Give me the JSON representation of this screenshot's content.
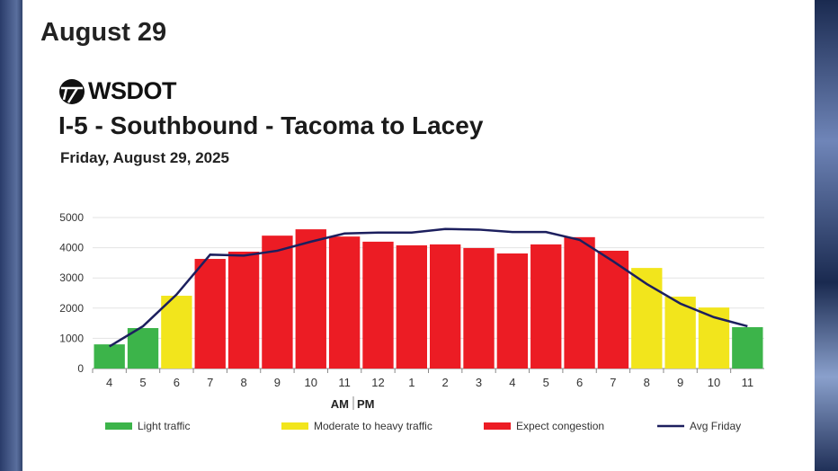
{
  "header": {
    "date": "August 29"
  },
  "logo": {
    "text": "WSDOT"
  },
  "chart_data": {
    "type": "bar",
    "title": "I-5 - Southbound - Tacoma to Lacey",
    "subtitle": "Friday, August 29, 2025",
    "xlabel_am": "AM",
    "xlabel_pm": "PM",
    "categories": [
      "4",
      "5",
      "6",
      "7",
      "8",
      "9",
      "10",
      "11",
      "12",
      "1",
      "2",
      "3",
      "4",
      "5",
      "6",
      "7",
      "8",
      "9",
      "10",
      "11"
    ],
    "values": [
      800,
      1340,
      2410,
      3630,
      3870,
      4400,
      4610,
      4370,
      4200,
      4080,
      4110,
      3990,
      3810,
      4110,
      4350,
      3900,
      3330,
      2380,
      2020,
      1370
    ],
    "levels": [
      "light",
      "light",
      "moderate",
      "congestion",
      "congestion",
      "congestion",
      "congestion",
      "congestion",
      "congestion",
      "congestion",
      "congestion",
      "congestion",
      "congestion",
      "congestion",
      "congestion",
      "congestion",
      "moderate",
      "moderate",
      "moderate",
      "light"
    ],
    "avg_friday": [
      730,
      1400,
      2450,
      3770,
      3740,
      3900,
      4200,
      4470,
      4500,
      4500,
      4620,
      4600,
      4520,
      4520,
      4260,
      3550,
      2800,
      2150,
      1700,
      1400
    ],
    "ylim": [
      0,
      5000
    ],
    "yticks": [
      "0",
      "1000",
      "2000",
      "3000",
      "4000",
      "5000"
    ],
    "grid": true,
    "legend_position": "bottom",
    "legend": [
      {
        "key": "light",
        "label": "Light traffic",
        "color": "#3cb44a"
      },
      {
        "key": "moderate",
        "label": "Moderate to heavy traffic",
        "color": "#f2e51c"
      },
      {
        "key": "congestion",
        "label": "Expect congestion",
        "color": "#ec1c24"
      },
      {
        "key": "avg",
        "label": "Avg Friday",
        "color": "#1c1f5e"
      }
    ]
  }
}
